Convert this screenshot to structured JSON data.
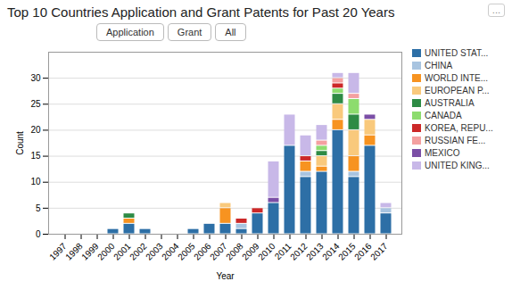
{
  "chart_data": {
    "type": "bar",
    "title": "Top 10 Countries Application and Grant Patents for Past 20 Years",
    "xlabel": "Year",
    "ylabel": "Count",
    "categories": [
      "1997",
      "1998",
      "1999",
      "2000",
      "2001",
      "2002",
      "2003",
      "2004",
      "2005",
      "2006",
      "2007",
      "2008",
      "2009",
      "2010",
      "2011",
      "2012",
      "2013",
      "2014",
      "2015",
      "2016",
      "2017"
    ],
    "series": [
      {
        "name": "UNITED STAT...",
        "color": "#2d6fa6",
        "values": [
          0,
          0,
          0,
          1,
          2,
          1,
          0,
          0,
          1,
          2,
          2,
          1,
          4,
          6,
          17,
          11,
          12,
          20,
          11,
          17,
          4
        ]
      },
      {
        "name": "CHINA",
        "color": "#a8c4e0",
        "values": [
          0,
          0,
          0,
          0,
          0,
          0,
          0,
          0,
          0,
          0,
          0,
          1,
          0,
          0,
          0,
          1,
          0,
          0,
          1,
          0,
          1
        ]
      },
      {
        "name": "WORLD INTE...",
        "color": "#f79320",
        "values": [
          0,
          0,
          0,
          0,
          1,
          0,
          0,
          0,
          0,
          0,
          3,
          0,
          0,
          0,
          0,
          2,
          1,
          2,
          3,
          2,
          0
        ]
      },
      {
        "name": "EUROPEAN P...",
        "color": "#f9c97c",
        "values": [
          0,
          0,
          0,
          0,
          0,
          0,
          0,
          0,
          0,
          0,
          1,
          0,
          0,
          0,
          0,
          0,
          2,
          3,
          5,
          3,
          0
        ]
      },
      {
        "name": "AUSTRALIA",
        "color": "#2e8b45",
        "values": [
          0,
          0,
          0,
          0,
          1,
          0,
          0,
          0,
          0,
          0,
          0,
          0,
          0,
          0,
          0,
          0,
          1,
          2,
          3,
          0,
          0
        ]
      },
      {
        "name": "CANADA",
        "color": "#8ddc6e",
        "values": [
          0,
          0,
          0,
          0,
          0,
          0,
          0,
          0,
          0,
          0,
          0,
          0,
          0,
          0,
          0,
          0,
          1,
          1,
          3,
          0,
          0
        ]
      },
      {
        "name": "KOREA, REPU...",
        "color": "#cc2828",
        "values": [
          0,
          0,
          0,
          0,
          0,
          0,
          0,
          0,
          0,
          0,
          0,
          1,
          1,
          0,
          0,
          1,
          0,
          1,
          0,
          0,
          0
        ]
      },
      {
        "name": "RUSSIAN FE...",
        "color": "#f4a0a0",
        "values": [
          0,
          0,
          0,
          0,
          0,
          0,
          0,
          0,
          0,
          0,
          0,
          0,
          0,
          0,
          0,
          0,
          1,
          1,
          1,
          0,
          0
        ]
      },
      {
        "name": "MEXICO",
        "color": "#7b4fa6",
        "values": [
          0,
          0,
          0,
          0,
          0,
          0,
          0,
          0,
          0,
          0,
          0,
          0,
          0,
          1,
          0,
          0,
          0,
          0,
          0,
          1,
          0
        ]
      },
      {
        "name": "UNITED KING...",
        "color": "#c8b8e8",
        "values": [
          0,
          0,
          0,
          0,
          0,
          0,
          0,
          0,
          0,
          0,
          0,
          0,
          0,
          7,
          6,
          4,
          3,
          1,
          4,
          0,
          1
        ]
      }
    ],
    "stacked": true,
    "ylim": [
      0,
      35
    ],
    "yticks": [
      0,
      5,
      10,
      15,
      20,
      25,
      30
    ],
    "grid": true,
    "legend": "right",
    "annotations": [
      "Application",
      "Grant",
      "All",
      "..."
    ]
  }
}
